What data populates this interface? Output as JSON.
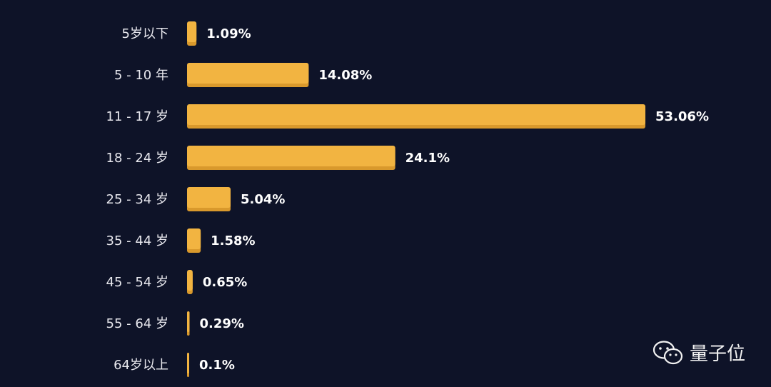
{
  "chart_data": {
    "type": "bar",
    "orientation": "horizontal",
    "categories": [
      "5岁以下",
      "5 - 10 年",
      "11 - 17 岁",
      "18 - 24 岁",
      "25 - 34 岁",
      "35 - 44 岁",
      "45 - 54 岁",
      "55 - 64 岁",
      "64岁以上"
    ],
    "values": [
      1.09,
      14.08,
      53.06,
      24.1,
      5.04,
      1.58,
      0.65,
      0.29,
      0.1
    ],
    "value_labels": [
      "1.09%",
      "14.08%",
      "53.06%",
      "24.1%",
      "5.04%",
      "1.58%",
      "0.65%",
      "0.29%",
      "0.1%"
    ],
    "title": "",
    "xlabel": "",
    "ylabel": "",
    "grid": false,
    "bar_color": "#f2b441",
    "bar_shadow_color": "#d9992c"
  },
  "watermark": {
    "text": "量子位",
    "icon": "wechat-icon"
  }
}
